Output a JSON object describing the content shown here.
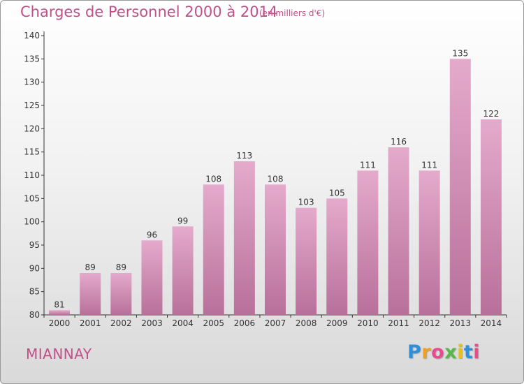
{
  "header": {
    "title": "Charges de Personnel 2000 à 2014",
    "subtitle": "(en milliers d'€)"
  },
  "footer": {
    "commune": "MIANNAY",
    "logo_letters": [
      "P",
      "r",
      "o",
      "x",
      "i",
      "t",
      "i"
    ],
    "logo_colors": [
      "#2f8fd8",
      "#f0a020",
      "#e84c8c",
      "#58b848",
      "#e6c020",
      "#2f8fd8",
      "#e84c8c"
    ]
  },
  "colors": {
    "bar_top": "#e4aacc",
    "bar_bottom": "#b8709a",
    "text": "#c0508a",
    "axis": "#333333"
  },
  "chart_data": {
    "type": "bar",
    "title": "Charges de Personnel 2000 à 2014",
    "subtitle": "(en milliers d'€)",
    "categories": [
      "2000",
      "2001",
      "2002",
      "2003",
      "2004",
      "2005",
      "2006",
      "2007",
      "2008",
      "2009",
      "2010",
      "2011",
      "2012",
      "2013",
      "2014"
    ],
    "values": [
      81,
      89,
      89,
      96,
      99,
      108,
      113,
      108,
      103,
      105,
      111,
      116,
      111,
      135,
      122
    ],
    "ylim": [
      80,
      140
    ],
    "yticks": [
      80,
      85,
      90,
      95,
      100,
      105,
      110,
      115,
      120,
      125,
      130,
      135,
      140
    ],
    "xlabel": "",
    "ylabel": "",
    "grid": false,
    "legend": "none"
  }
}
